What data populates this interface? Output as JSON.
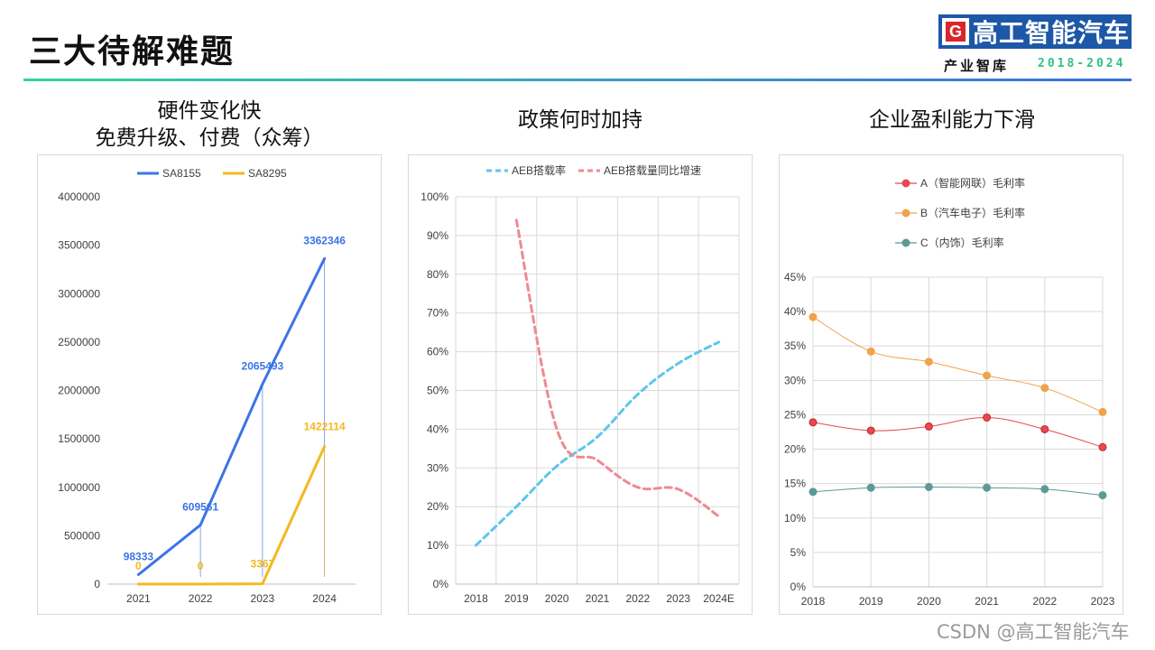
{
  "page": {
    "title": "三大待解难题"
  },
  "brand": {
    "logo_letter": "G",
    "name": "高工智能汽车",
    "subtitle": "产业智库",
    "years": "2018-2024"
  },
  "watermark": "CSDN @高工智能汽车",
  "panels": {
    "left_heading_line1": "硬件变化快",
    "left_heading_line2": "免费升级、付费（众筹）",
    "middle_heading": "政策何时加持",
    "right_heading": "企业盈利能力下滑"
  },
  "colors": {
    "sa8155": "#3b74e6",
    "sa8295": "#f4b920",
    "aeb_rate": "#5ec6ea",
    "aeb_growth": "#ee8a92",
    "company_a": "#e8494f",
    "company_b": "#f0a24c",
    "company_c": "#5b9a98",
    "grid": "#d9d9d9",
    "axis_text": "#404040"
  },
  "chart_data": [
    {
      "type": "line",
      "x": [
        "2021",
        "2022",
        "2023",
        "2024"
      ],
      "series": [
        {
          "name": "SA8155",
          "values": [
            98333,
            609561,
            2065493,
            3362346
          ],
          "labels": [
            "98333",
            "609561",
            "2065493",
            "3362346"
          ]
        },
        {
          "name": "SA8295",
          "values": [
            0,
            0,
            3367,
            1422114
          ],
          "labels": [
            "0",
            "0",
            "3367",
            "1422114"
          ]
        }
      ],
      "ylim": [
        0,
        4000000
      ],
      "yticks": [
        "0",
        "500000",
        "1000000",
        "1500000",
        "2000000",
        "2500000",
        "3000000",
        "3500000",
        "4000000"
      ],
      "grid": false,
      "legend": "top"
    },
    {
      "type": "line",
      "x": [
        "2018",
        "2019",
        "2020",
        "2021",
        "2022",
        "2023",
        "2024E"
      ],
      "series": [
        {
          "name": "AEB搭载率",
          "values": [
            0.1,
            0.2,
            0.305,
            0.38,
            0.49,
            0.57,
            0.625
          ]
        },
        {
          "name": "AEB搭载量同比增速",
          "values": [
            null,
            0.94,
            0.4,
            0.32,
            0.25,
            0.245,
            0.175
          ]
        }
      ],
      "ylim": [
        0,
        1
      ],
      "yticks": [
        "0%",
        "10%",
        "20%",
        "30%",
        "40%",
        "50%",
        "60%",
        "70%",
        "80%",
        "90%",
        "100%"
      ],
      "grid": true,
      "legend": "top"
    },
    {
      "type": "line",
      "x": [
        "2018",
        "2019",
        "2020",
        "2021",
        "2022",
        "2023"
      ],
      "series": [
        {
          "name": "A（智能网联）毛利率",
          "values": [
            0.239,
            0.227,
            0.233,
            0.246,
            0.229,
            0.203
          ]
        },
        {
          "name": "B（汽车电子）毛利率",
          "values": [
            0.392,
            0.342,
            0.327,
            0.307,
            0.289,
            0.254
          ]
        },
        {
          "name": "C（内饰）毛利率",
          "values": [
            0.138,
            0.144,
            0.145,
            0.144,
            0.142,
            0.133
          ]
        }
      ],
      "ylim": [
        0,
        0.45
      ],
      "yticks": [
        "0%",
        "5%",
        "10%",
        "15%",
        "20%",
        "25%",
        "30%",
        "35%",
        "40%",
        "45%"
      ],
      "grid": true,
      "legend": "top"
    }
  ]
}
